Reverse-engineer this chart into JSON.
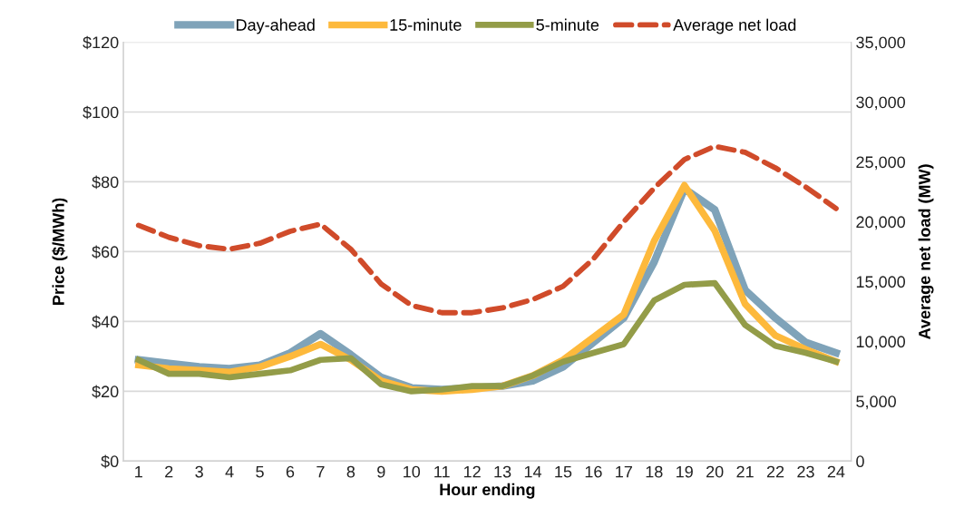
{
  "chart_data": {
    "type": "line",
    "xlabel": "Hour ending",
    "ylabel": "Price ($/MWh)",
    "y2label": "Average net load (MW)",
    "categories": [
      "1",
      "2",
      "3",
      "4",
      "5",
      "6",
      "7",
      "8",
      "9",
      "10",
      "11",
      "12",
      "13",
      "14",
      "15",
      "16",
      "17",
      "18",
      "19",
      "20",
      "21",
      "22",
      "23",
      "24"
    ],
    "series": [
      {
        "name": "Day-ahead",
        "color": "#7fa3b9",
        "values": [
          29,
          28,
          27,
          26.5,
          27.5,
          31,
          36.5,
          30.5,
          24,
          21,
          20.5,
          21,
          21.5,
          23,
          27,
          34,
          41,
          57,
          78,
          72,
          49,
          41,
          34,
          31
        ]
      },
      {
        "name": "15-minute",
        "color": "#fdb93c",
        "values": [
          27.5,
          26.5,
          26,
          25.5,
          27,
          30,
          33.5,
          29,
          23,
          20.5,
          20,
          20.5,
          21.5,
          24.5,
          29,
          35.5,
          42,
          63,
          79,
          66,
          45,
          36,
          32,
          28.5
        ]
      },
      {
        "name": "5-minute",
        "color": "#939c48",
        "values": [
          29,
          25,
          25,
          24,
          25,
          26,
          29,
          29.5,
          22,
          20,
          20.5,
          21.5,
          21.5,
          24.5,
          28.5,
          31,
          33.5,
          46,
          50.5,
          51,
          39,
          33,
          31,
          28.5
        ]
      },
      {
        "name": "Average net load",
        "color": "#d04b2a",
        "axis": "y2",
        "line_style": "dashed",
        "values": [
          19700,
          18700,
          18000,
          17700,
          18200,
          19200,
          19800,
          17700,
          14800,
          13000,
          12400,
          12400,
          12800,
          13500,
          14600,
          16900,
          20000,
          22800,
          25200,
          26300,
          25800,
          24500,
          22900,
          21100
        ]
      }
    ],
    "ylim": [
      0,
      120
    ],
    "yticks": [
      {
        "value": 0,
        "label": "$0"
      },
      {
        "value": 20,
        "label": "$20"
      },
      {
        "value": 40,
        "label": "$40"
      },
      {
        "value": 60,
        "label": "$60"
      },
      {
        "value": 80,
        "label": "$80"
      },
      {
        "value": 100,
        "label": "$100"
      },
      {
        "value": 120,
        "label": "$120"
      }
    ],
    "y2lim": [
      0,
      35000
    ],
    "y2ticks": [
      {
        "value": 0,
        "label": "0"
      },
      {
        "value": 5000,
        "label": "5,000"
      },
      {
        "value": 10000,
        "label": "10,000"
      },
      {
        "value": 15000,
        "label": "15,000"
      },
      {
        "value": 20000,
        "label": "20,000"
      },
      {
        "value": 25000,
        "label": "25,000"
      },
      {
        "value": 30000,
        "label": "30,000"
      },
      {
        "value": 35000,
        "label": "35,000"
      }
    ],
    "grid": "y",
    "legend": "top",
    "marker": "none"
  }
}
